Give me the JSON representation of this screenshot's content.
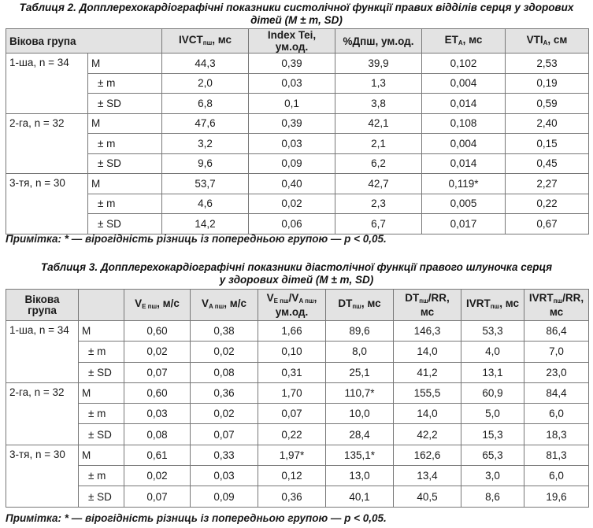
{
  "table2": {
    "caption_line1": "Таблиця 2. Допплерехокардіографічні показники систолічної функції правих відділів серця у здорових",
    "caption_line2": "дітей (M ± m, SD)",
    "headers": {
      "group": "Вікова група",
      "ivct_main": "IVCT",
      "ivct_sub": "пш",
      "ivct_unit": ", мс",
      "tei": "Index Tei, ум.од.",
      "pdpsh": "%Дпш, ум.од.",
      "et_main": "ET",
      "et_sub": "A",
      "et_unit": ", мс",
      "vti_main": "VTI",
      "vti_sub": "A",
      "vti_unit": ", см"
    },
    "groups": [
      {
        "label": "1-ша, n = 34",
        "rows": [
          {
            "stat": "M",
            "ivct": "44,3",
            "tei": "0,39",
            "pdpsh": "39,9",
            "et": "0,102",
            "vti": "2,53"
          },
          {
            "stat": "± m",
            "ivct": "2,0",
            "tei": "0,03",
            "pdpsh": "1,3",
            "et": "0,004",
            "vti": "0,19"
          },
          {
            "stat": "± SD",
            "ivct": "6,8",
            "tei": "0,1",
            "pdpsh": "3,8",
            "et": "0,014",
            "vti": "0,59"
          }
        ]
      },
      {
        "label": "2-га, n = 32",
        "rows": [
          {
            "stat": "M",
            "ivct": "47,6",
            "tei": "0,39",
            "pdpsh": "42,1",
            "et": "0,108",
            "vti": "2,40"
          },
          {
            "stat": "± m",
            "ivct": "3,2",
            "tei": "0,03",
            "pdpsh": "2,1",
            "et": "0,004",
            "vti": "0,15"
          },
          {
            "stat": "± SD",
            "ivct": "9,6",
            "tei": "0,09",
            "pdpsh": "6,2",
            "et": "0,014",
            "vti": "0,45"
          }
        ]
      },
      {
        "label": "3-тя, n = 30",
        "rows": [
          {
            "stat": "M",
            "ivct": "53,7",
            "tei": "0,40",
            "pdpsh": "42,7",
            "et": "0,119*",
            "vti": "2,27"
          },
          {
            "stat": "± m",
            "ivct": "4,6",
            "tei": "0,02",
            "pdpsh": "2,3",
            "et": "0,005",
            "vti": "0,22"
          },
          {
            "stat": "± SD",
            "ivct": "14,2",
            "tei": "0,06",
            "pdpsh": "6,7",
            "et": "0,017",
            "vti": "0,67"
          }
        ]
      }
    ],
    "note": "Примітка: * — вірогідність різниць із попередньою групою — р < 0,05."
  },
  "table3": {
    "caption_line1": "Таблиця 3. Допплерехокардіографічні показники діастолічної функції правого шлуночка серця",
    "caption_line2": "у здорових дітей (M ± m, SD)",
    "headers": {
      "group_l1": "Вікова",
      "group_l2": "група",
      "ve_main": "V",
      "ve_sub": "E пш",
      "ve_unit": ", м/с",
      "va_main": "V",
      "va_sub": "A пш",
      "va_unit": ", м/с",
      "ratio_v1": "V",
      "ratio_sub1": "E пш",
      "ratio_slash": "/V",
      "ratio_sub2": "A пш",
      "ratio_unit1": ",",
      "ratio_unit2": "ум.од.",
      "dt_main": "DT",
      "dt_sub": "пш",
      "dt_unit": ", мс",
      "dtrr_main": "DT",
      "dtrr_sub": "пш",
      "dtrr_unit1": "/RR,",
      "dtrr_unit2": "мс",
      "ivrt_main": "IVRT",
      "ivrt_sub": "пш",
      "ivrt_unit": ", мс",
      "ivrtrr_main": "IVRT",
      "ivrtrr_sub": "пш",
      "ivrtrr_unit1": "/RR,",
      "ivrtrr_unit2": "мс"
    },
    "groups": [
      {
        "label": "1-ша, n = 34",
        "rows": [
          {
            "stat": "M",
            "ve": "0,60",
            "va": "0,38",
            "ratio": "1,66",
            "dt": "89,6",
            "dtrr": "146,3",
            "ivrt": "53,3",
            "ivrtrr": "86,4"
          },
          {
            "stat": "± m",
            "ve": "0,02",
            "va": "0,02",
            "ratio": "0,10",
            "dt": "8,0",
            "dtrr": "14,0",
            "ivrt": "4,0",
            "ivrtrr": "7,0"
          },
          {
            "stat": "± SD",
            "ve": "0,07",
            "va": "0,08",
            "ratio": "0,31",
            "dt": "25,1",
            "dtrr": "41,2",
            "ivrt": "13,1",
            "ivrtrr": "23,0"
          }
        ]
      },
      {
        "label": "2-га, n = 32",
        "rows": [
          {
            "stat": "M",
            "ve": "0,60",
            "va": "0,36",
            "ratio": "1,70",
            "dt": "110,7*",
            "dtrr": "155,5",
            "ivrt": "60,9",
            "ivrtrr": "84,4"
          },
          {
            "stat": "± m",
            "ve": "0,03",
            "va": "0,02",
            "ratio": "0,07",
            "dt": "10,0",
            "dtrr": "14,0",
            "ivrt": "5,0",
            "ivrtrr": "6,0"
          },
          {
            "stat": "± SD",
            "ve": "0,08",
            "va": "0,07",
            "ratio": "0,22",
            "dt": "28,4",
            "dtrr": "42,2",
            "ivrt": "15,3",
            "ivrtrr": "18,3"
          }
        ]
      },
      {
        "label": "3-тя, n = 30",
        "rows": [
          {
            "stat": "M",
            "ve": "0,61",
            "va": "0,33",
            "ratio": "1,97*",
            "dt": "135,1*",
            "dtrr": "162,6",
            "ivrt": "65,3",
            "ivrtrr": "81,3"
          },
          {
            "stat": "± m",
            "ve": "0,02",
            "va": "0,03",
            "ratio": "0,12",
            "dt": "13,0",
            "dtrr": "13,4",
            "ivrt": "3,0",
            "ivrtrr": "6,0"
          },
          {
            "stat": "± SD",
            "ve": "0,07",
            "va": "0,09",
            "ratio": "0,36",
            "dt": "40,1",
            "dtrr": "40,5",
            "ivrt": "8,6",
            "ivrtrr": "19,6"
          }
        ]
      }
    ],
    "note": "Примітка: * — вірогідність різниць із попередньою групою — р < 0,05."
  }
}
